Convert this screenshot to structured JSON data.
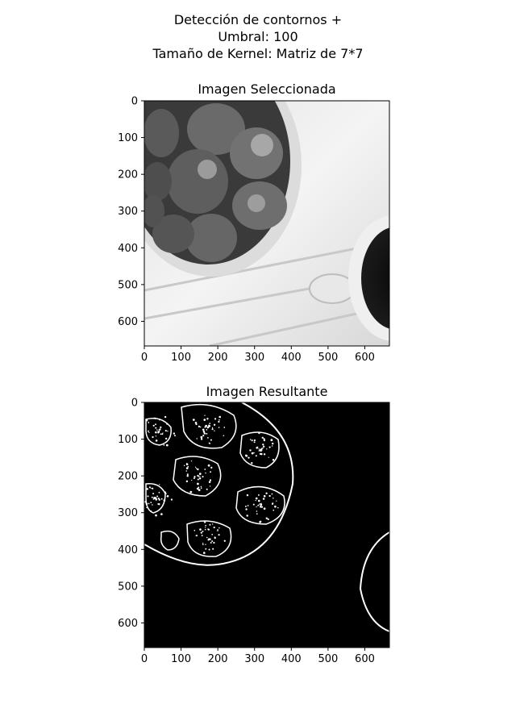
{
  "figure": {
    "suptitle_lines": [
      "Detección de contornos +",
      "Umbral: 100",
      "Tamaño de Kernel:  Matriz de 7*7"
    ]
  },
  "chart_data": [
    {
      "type": "image",
      "title": "Imagen Seleccionada",
      "content": "grayscale photo of strawberries in a bowl beside a coffee cup",
      "xlim": [
        0,
        667
      ],
      "ylim": [
        667,
        0
      ],
      "xticks": [
        0,
        100,
        200,
        300,
        400,
        500,
        600
      ],
      "yticks": [
        0,
        100,
        200,
        300,
        400,
        500,
        600
      ]
    },
    {
      "type": "image",
      "title": "Imagen Resultante",
      "content": "binary edge map (white contours on black) of the same photo",
      "xlim": [
        0,
        667
      ],
      "ylim": [
        667,
        0
      ],
      "xticks": [
        0,
        100,
        200,
        300,
        400,
        500,
        600
      ],
      "yticks": [
        0,
        100,
        200,
        300,
        400,
        500,
        600
      ]
    }
  ]
}
